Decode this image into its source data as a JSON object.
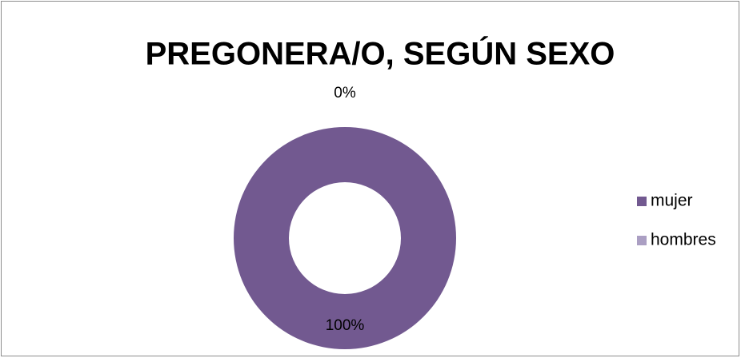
{
  "chart_data": {
    "type": "donut",
    "title": "PREGONERA/O, SEGÚN SEXO",
    "categories": [
      "mujer",
      "hombres"
    ],
    "values": [
      100,
      0
    ],
    "value_labels": [
      "100%",
      "0%"
    ],
    "colors": [
      "#725990",
      "#ab9fc3"
    ],
    "legend": "right"
  }
}
